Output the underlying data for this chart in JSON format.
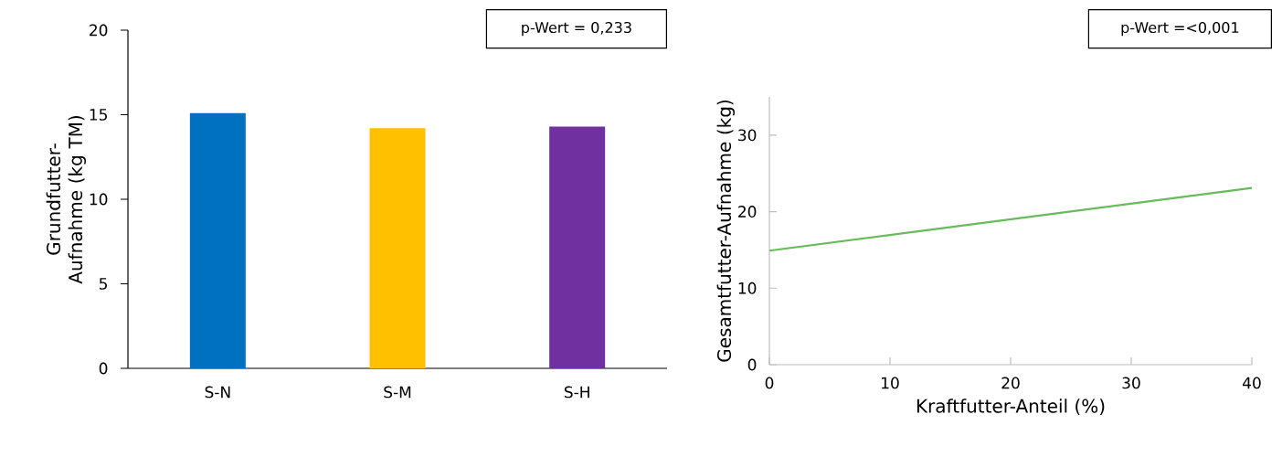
{
  "chart_data": [
    {
      "type": "bar",
      "ylabel": "Grundfutter-Aufnahme (kg TM)",
      "categories": [
        "S-N",
        "S-M",
        "S-H"
      ],
      "values": [
        15.1,
        14.2,
        14.3
      ],
      "colors": [
        "#0070c0",
        "#ffc000",
        "#7030a0"
      ],
      "ylim": [
        0,
        20
      ],
      "yticks": [
        0,
        5,
        10,
        15,
        20
      ],
      "annotations": [
        "p-Wert = 0,233"
      ]
    },
    {
      "type": "line",
      "xlabel": "Kraftfutter-Anteil (%)",
      "ylabel": "Gesamtfutter-Aufnahme  (kg)",
      "x": [
        0,
        40
      ],
      "values": [
        14.9,
        23.1
      ],
      "color": "#66bb5a",
      "marker": "none",
      "xlim": [
        0,
        40
      ],
      "ylim": [
        0,
        35
      ],
      "xticks": [
        0,
        10,
        20,
        30,
        40
      ],
      "yticks": [
        0,
        10,
        20,
        30
      ],
      "annotations": [
        "p-Wert =<0,001"
      ]
    }
  ]
}
